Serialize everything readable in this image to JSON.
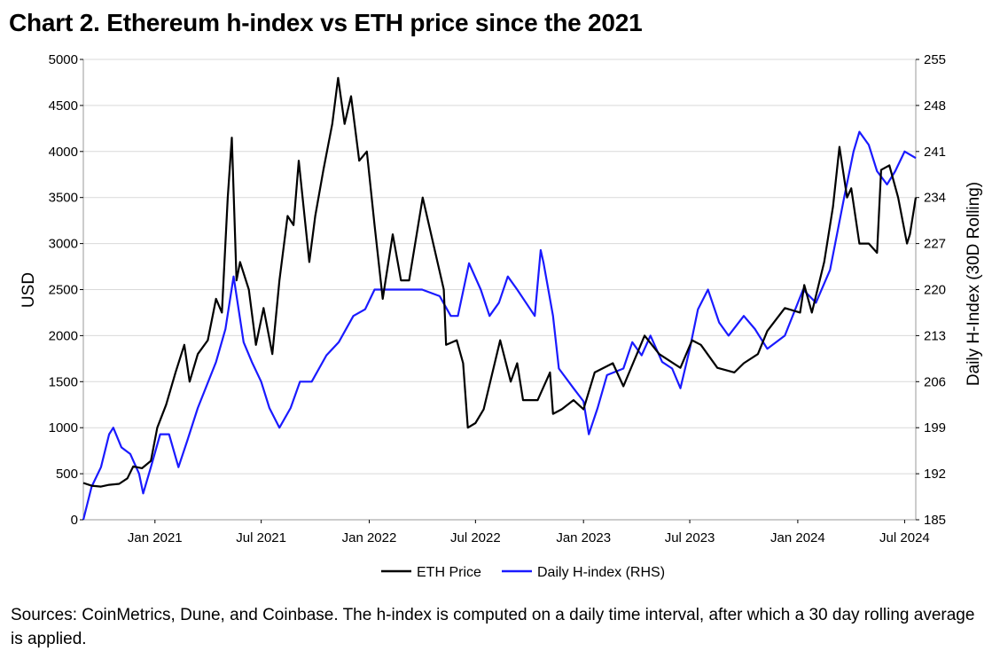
{
  "title": "Chart 2. Ethereum h-index vs ETH price since the 2021",
  "footnote": "Sources: CoinMetrics, Dune, and Coinbase. The h-index is computed on a daily time interval, after which a 30 day rolling average is applied.",
  "colors": {
    "eth": "#000000",
    "hindex": "#1a1aff",
    "grid": "#d9d9d9",
    "axis": "#000000"
  },
  "chart_data": {
    "type": "line",
    "x_tick_labels": [
      "Jan 2021",
      "Jul 2021",
      "Jan 2022",
      "Jul 2022",
      "Jan 2023",
      "Jul 2023",
      "Jan 2024",
      "Jul 2024"
    ],
    "x_tick_dates": [
      "2021-01-01",
      "2021-07-01",
      "2022-01-01",
      "2022-07-01",
      "2023-01-01",
      "2023-07-01",
      "2024-01-01",
      "2024-07-01"
    ],
    "xlim": [
      "2020-09-01",
      "2024-07-20"
    ],
    "ylabel_left": "USD",
    "ylim_left": [
      0,
      5000
    ],
    "yticks_left": [
      "0",
      "500",
      "1000",
      "1500",
      "2000",
      "2500",
      "3000",
      "3500",
      "4000",
      "4500",
      "5000"
    ],
    "ylabel_right": "Daily H-Index (30D Rolling)",
    "ylim_right": [
      185,
      255
    ],
    "yticks_right": [
      "185",
      "192",
      "199",
      "206",
      "213",
      "220",
      "227",
      "234",
      "241",
      "248",
      "255"
    ],
    "grid": true,
    "legend_position": "bottom-center",
    "series": [
      {
        "name": "ETH Price",
        "axis": "left",
        "points": [
          [
            "2020-09-01",
            400
          ],
          [
            "2020-09-15",
            370
          ],
          [
            "2020-10-01",
            360
          ],
          [
            "2020-10-15",
            380
          ],
          [
            "2020-11-01",
            390
          ],
          [
            "2020-11-15",
            450
          ],
          [
            "2020-11-25",
            580
          ],
          [
            "2020-12-10",
            560
          ],
          [
            "2020-12-25",
            640
          ],
          [
            "2021-01-05",
            1000
          ],
          [
            "2021-01-20",
            1250
          ],
          [
            "2021-02-05",
            1600
          ],
          [
            "2021-02-20",
            1900
          ],
          [
            "2021-03-01",
            1500
          ],
          [
            "2021-03-15",
            1800
          ],
          [
            "2021-04-01",
            1950
          ],
          [
            "2021-04-15",
            2400
          ],
          [
            "2021-04-25",
            2250
          ],
          [
            "2021-05-05",
            3500
          ],
          [
            "2021-05-12",
            4150
          ],
          [
            "2021-05-20",
            2600
          ],
          [
            "2021-05-26",
            2800
          ],
          [
            "2021-06-10",
            2500
          ],
          [
            "2021-06-22",
            1900
          ],
          [
            "2021-07-05",
            2300
          ],
          [
            "2021-07-20",
            1800
          ],
          [
            "2021-08-01",
            2600
          ],
          [
            "2021-08-15",
            3300
          ],
          [
            "2021-08-25",
            3200
          ],
          [
            "2021-09-03",
            3900
          ],
          [
            "2021-09-21",
            2800
          ],
          [
            "2021-10-01",
            3300
          ],
          [
            "2021-10-15",
            3800
          ],
          [
            "2021-10-30",
            4300
          ],
          [
            "2021-11-09",
            4800
          ],
          [
            "2021-11-20",
            4300
          ],
          [
            "2021-12-01",
            4600
          ],
          [
            "2021-12-15",
            3900
          ],
          [
            "2021-12-28",
            4000
          ],
          [
            "2022-01-10",
            3200
          ],
          [
            "2022-01-24",
            2400
          ],
          [
            "2022-02-10",
            3100
          ],
          [
            "2022-02-24",
            2600
          ],
          [
            "2022-03-10",
            2600
          ],
          [
            "2022-04-02",
            3500
          ],
          [
            "2022-04-20",
            3000
          ],
          [
            "2022-05-08",
            2500
          ],
          [
            "2022-05-12",
            1900
          ],
          [
            "2022-05-30",
            1950
          ],
          [
            "2022-06-10",
            1700
          ],
          [
            "2022-06-18",
            1000
          ],
          [
            "2022-07-01",
            1050
          ],
          [
            "2022-07-15",
            1200
          ],
          [
            "2022-08-12",
            1950
          ],
          [
            "2022-08-30",
            1500
          ],
          [
            "2022-09-10",
            1700
          ],
          [
            "2022-09-20",
            1300
          ],
          [
            "2022-10-15",
            1300
          ],
          [
            "2022-11-05",
            1600
          ],
          [
            "2022-11-10",
            1150
          ],
          [
            "2022-11-25",
            1200
          ],
          [
            "2022-12-15",
            1300
          ],
          [
            "2023-01-01",
            1200
          ],
          [
            "2023-01-20",
            1600
          ],
          [
            "2023-02-20",
            1700
          ],
          [
            "2023-03-10",
            1450
          ],
          [
            "2023-04-15",
            2000
          ],
          [
            "2023-05-10",
            1800
          ],
          [
            "2023-06-15",
            1650
          ],
          [
            "2023-07-05",
            1950
          ],
          [
            "2023-07-20",
            1900
          ],
          [
            "2023-08-17",
            1650
          ],
          [
            "2023-09-15",
            1600
          ],
          [
            "2023-10-01",
            1700
          ],
          [
            "2023-10-25",
            1800
          ],
          [
            "2023-11-10",
            2050
          ],
          [
            "2023-12-10",
            2300
          ],
          [
            "2024-01-05",
            2250
          ],
          [
            "2024-01-12",
            2550
          ],
          [
            "2024-01-25",
            2250
          ],
          [
            "2024-02-15",
            2800
          ],
          [
            "2024-03-01",
            3400
          ],
          [
            "2024-03-12",
            4050
          ],
          [
            "2024-03-25",
            3500
          ],
          [
            "2024-04-01",
            3600
          ],
          [
            "2024-04-15",
            3000
          ],
          [
            "2024-05-01",
            3000
          ],
          [
            "2024-05-15",
            2900
          ],
          [
            "2024-05-22",
            3800
          ],
          [
            "2024-06-05",
            3850
          ],
          [
            "2024-06-20",
            3500
          ],
          [
            "2024-07-05",
            3000
          ],
          [
            "2024-07-10",
            3100
          ],
          [
            "2024-07-20",
            3500
          ]
        ]
      },
      {
        "name": "Daily H-index (RHS)",
        "axis": "right",
        "points": [
          [
            "2020-09-01",
            185
          ],
          [
            "2020-09-15",
            190
          ],
          [
            "2020-10-01",
            193
          ],
          [
            "2020-10-15",
            198
          ],
          [
            "2020-10-22",
            199
          ],
          [
            "2020-11-05",
            196
          ],
          [
            "2020-11-20",
            195
          ],
          [
            "2020-12-05",
            192
          ],
          [
            "2020-12-12",
            189
          ],
          [
            "2020-12-25",
            193
          ],
          [
            "2021-01-10",
            198
          ],
          [
            "2021-01-25",
            198
          ],
          [
            "2021-02-10",
            193
          ],
          [
            "2021-02-25",
            197
          ],
          [
            "2021-03-15",
            202
          ],
          [
            "2021-04-15",
            209
          ],
          [
            "2021-05-01",
            214
          ],
          [
            "2021-05-15",
            222
          ],
          [
            "2021-06-01",
            212
          ],
          [
            "2021-06-15",
            209
          ],
          [
            "2021-07-01",
            206
          ],
          [
            "2021-07-15",
            202
          ],
          [
            "2021-08-01",
            199
          ],
          [
            "2021-08-20",
            202
          ],
          [
            "2021-09-05",
            206
          ],
          [
            "2021-09-25",
            206
          ],
          [
            "2021-10-20",
            210
          ],
          [
            "2021-11-10",
            212
          ],
          [
            "2021-12-05",
            216
          ],
          [
            "2021-12-25",
            217
          ],
          [
            "2022-01-10",
            220
          ],
          [
            "2022-02-01",
            220
          ],
          [
            "2022-03-01",
            220
          ],
          [
            "2022-04-01",
            220
          ],
          [
            "2022-05-01",
            219
          ],
          [
            "2022-05-20",
            216
          ],
          [
            "2022-06-01",
            216
          ],
          [
            "2022-06-20",
            224
          ],
          [
            "2022-07-10",
            220
          ],
          [
            "2022-07-25",
            216
          ],
          [
            "2022-08-10",
            218
          ],
          [
            "2022-08-25",
            222
          ],
          [
            "2022-09-10",
            220
          ],
          [
            "2022-09-25",
            218
          ],
          [
            "2022-10-10",
            216
          ],
          [
            "2022-10-20",
            226
          ],
          [
            "2022-10-25",
            224
          ],
          [
            "2022-11-10",
            216
          ],
          [
            "2022-11-20",
            208
          ],
          [
            "2022-12-15",
            205
          ],
          [
            "2023-01-01",
            203
          ],
          [
            "2023-01-10",
            198
          ],
          [
            "2023-01-25",
            202
          ],
          [
            "2023-02-10",
            207
          ],
          [
            "2023-03-10",
            208
          ],
          [
            "2023-03-25",
            212
          ],
          [
            "2023-04-10",
            210
          ],
          [
            "2023-04-25",
            213
          ],
          [
            "2023-05-15",
            209
          ],
          [
            "2023-06-01",
            208
          ],
          [
            "2023-06-15",
            205
          ],
          [
            "2023-07-01",
            211
          ],
          [
            "2023-07-15",
            217
          ],
          [
            "2023-08-01",
            220
          ],
          [
            "2023-08-20",
            215
          ],
          [
            "2023-09-05",
            213
          ],
          [
            "2023-10-01",
            216
          ],
          [
            "2023-10-20",
            214
          ],
          [
            "2023-11-10",
            211
          ],
          [
            "2023-12-10",
            213
          ],
          [
            "2024-01-10",
            220
          ],
          [
            "2024-02-01",
            218
          ],
          [
            "2024-02-25",
            223
          ],
          [
            "2024-03-20",
            234
          ],
          [
            "2024-04-05",
            241
          ],
          [
            "2024-04-15",
            244
          ],
          [
            "2024-05-01",
            242
          ],
          [
            "2024-05-15",
            238
          ],
          [
            "2024-06-01",
            236
          ],
          [
            "2024-06-15",
            238
          ],
          [
            "2024-07-01",
            241
          ],
          [
            "2024-07-20",
            240
          ]
        ]
      }
    ]
  }
}
